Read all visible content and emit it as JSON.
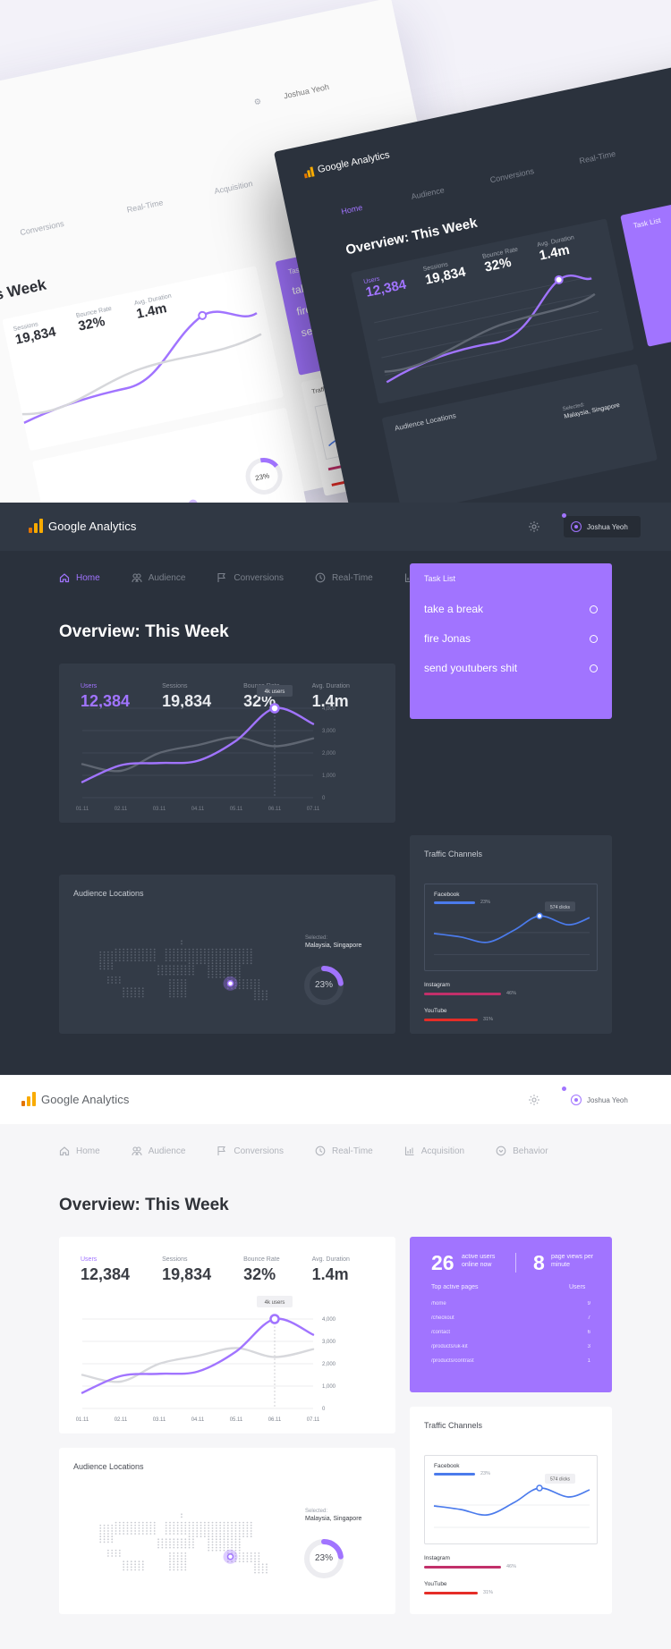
{
  "app": {
    "brand": "Google Analytics",
    "user": "Joshua Yeoh"
  },
  "nav": [
    "Home",
    "Audience",
    "Conversions",
    "Real-Time",
    "Acquisition",
    "Behavior"
  ],
  "page_title": "Overview: This Week",
  "kpis": [
    {
      "label": "Users",
      "value": "12,384"
    },
    {
      "label": "Sessions",
      "value": "19,834"
    },
    {
      "label": "Bounce Rate",
      "value": "32%"
    },
    {
      "label": "Avg. Duration",
      "value": "1.4m"
    }
  ],
  "hero": {
    "title_fragment": "s Week",
    "user_fragment": "Joshua Yeoh"
  },
  "chart_data": [
    {
      "type": "line",
      "x": [
        "01.11",
        "02.11",
        "03.11",
        "04.11",
        "05.11",
        "06.11",
        "07.11"
      ],
      "ylim": [
        0,
        4000
      ],
      "y_ticks": [
        "0",
        "1,000",
        "2,000",
        "3,000",
        "4,000"
      ],
      "series": [
        {
          "values": [
            700,
            1450,
            1550,
            1650,
            2550,
            4000,
            3300
          ]
        },
        {
          "values": [
            1500,
            1200,
            2000,
            2350,
            2700,
            2300,
            2650
          ]
        }
      ],
      "annotation": {
        "x": "06.11",
        "label": "4k users"
      },
      "colors": {
        "primary": "#a174ff",
        "secondary_dark": "#5f6672",
        "secondary_light": "#d7d8dc"
      }
    },
    {
      "type": "line",
      "annotation": {
        "label": "574 clicks"
      },
      "color": "#4b7bec"
    }
  ],
  "task_list": {
    "title": "Task List",
    "items": [
      "take a break",
      "fire Jonas",
      "send youtubers shit"
    ]
  },
  "audience": {
    "title": "Audience Locations",
    "selected_label": "Selected:",
    "selected_value": "Malaysia, Singapore",
    "percent": "23%",
    "percent_value": 23
  },
  "traffic": {
    "title": "Traffic Channels",
    "channels": [
      {
        "name": "Facebook",
        "pct": "23%",
        "value": 23,
        "color": "#4b7bec"
      },
      {
        "name": "Instagram",
        "pct": "46%",
        "value": 46,
        "color": "#c2306a"
      },
      {
        "name": "YouTube",
        "pct": "31%",
        "value": 31,
        "color": "#e52d27"
      }
    ]
  },
  "realtime": {
    "active_users": "26",
    "active_users_label": "active users online now",
    "page_views": "8",
    "page_views_label": "page views per minute",
    "table_header": {
      "page": "Top active pages",
      "users": "Users"
    },
    "rows": [
      {
        "page": "/home",
        "users": "9"
      },
      {
        "page": "/checkout",
        "users": "7"
      },
      {
        "page": "/contact",
        "users": "6"
      },
      {
        "page": "/products/uk-kit",
        "users": "3"
      },
      {
        "page": "/products/contrast",
        "users": "1"
      }
    ]
  },
  "colors": {
    "accent": "#a174ff",
    "dark_bg": "#2a313c",
    "dark_card": "#333b47",
    "logo_orange": "#f9ab00",
    "logo_dark_orange": "#e37400"
  }
}
